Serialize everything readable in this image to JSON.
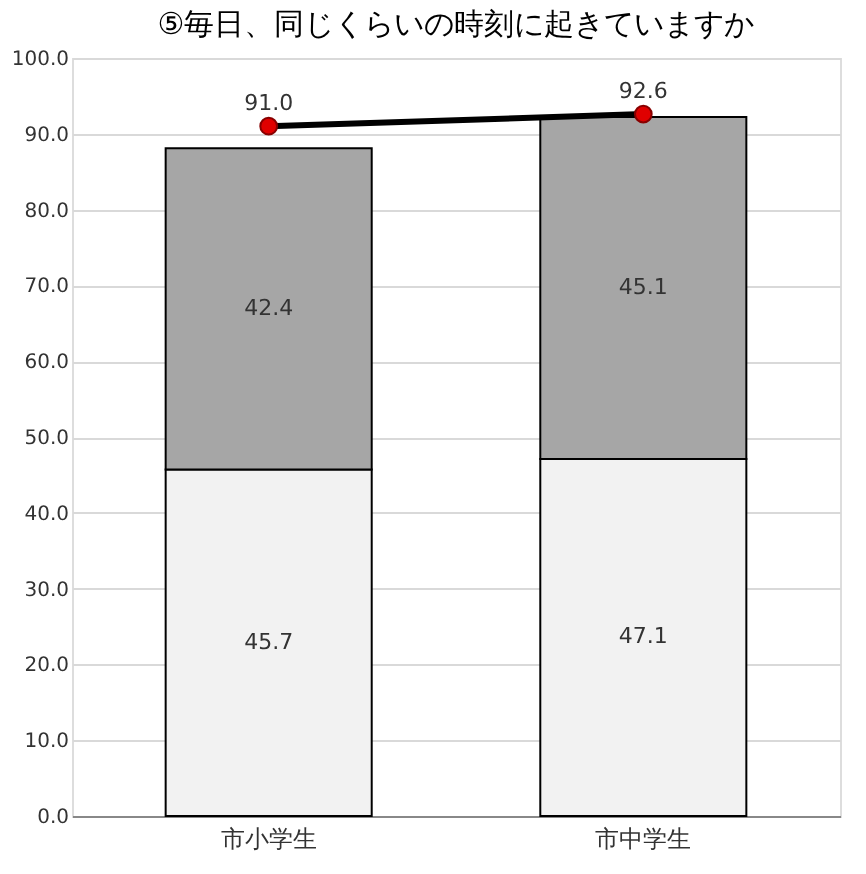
{
  "chart_data": {
    "type": "bar",
    "title": "⑤毎日、同じくらいの時刻に起きていますか",
    "categories": [
      "市小学生",
      "市中学生"
    ],
    "stacked": true,
    "grid": "y",
    "series": [
      {
        "color": "#f2f2f2",
        "values": [
          45.7,
          47.1
        ],
        "value_labels": [
          "45.7",
          "47.1"
        ]
      },
      {
        "color": "#a6a6a6",
        "values": [
          42.4,
          45.1
        ],
        "value_labels": [
          "42.4",
          "45.1"
        ]
      },
      {
        "type": "line",
        "color": "#000000",
        "marker": "circle",
        "colors": [
          "#e00000",
          "#e00000"
        ],
        "values": [
          91.0,
          92.6
        ],
        "value_labels": [
          "91.0",
          "92.6"
        ]
      }
    ],
    "ylim": [
      0,
      100
    ],
    "yticks": [
      {
        "value": 0,
        "label": "0.0"
      },
      {
        "value": 10,
        "label": "10.0"
      },
      {
        "value": 20,
        "label": "20.0"
      },
      {
        "value": 30,
        "label": "30.0"
      },
      {
        "value": 40,
        "label": "40.0"
      },
      {
        "value": 50,
        "label": "50.0"
      },
      {
        "value": 60,
        "label": "60.0"
      },
      {
        "value": 70,
        "label": "70.0"
      },
      {
        "value": 80,
        "label": "80.0"
      },
      {
        "value": 90,
        "label": "90.0"
      },
      {
        "value": 100,
        "label": "100.0"
      }
    ]
  }
}
